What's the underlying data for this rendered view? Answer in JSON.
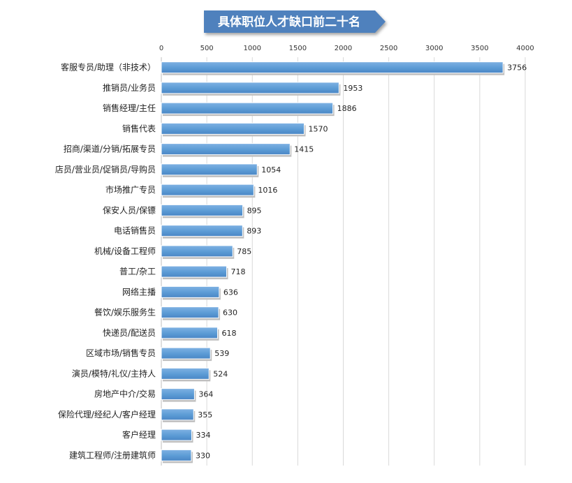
{
  "chart_data": {
    "type": "bar",
    "orientation": "horizontal",
    "title": "具体职位人才缺口前二十名",
    "xlabel": "",
    "ylabel": "",
    "xlim": [
      0,
      4000
    ],
    "x_ticks": [
      0,
      500,
      1000,
      1500,
      2000,
      2500,
      3000,
      3500,
      4000
    ],
    "x_axis_position": "top",
    "grid": true,
    "legend": "none",
    "data_labels": true,
    "bar_color": "#5b9bd5",
    "title_banner_color": "#4f81bd",
    "categories": [
      "客服专员/助理（非技术）",
      "推销员/业务员",
      "销售经理/主任",
      "销售代表",
      "招商/渠道/分销/拓展专员",
      "店员/营业员/促销员/导购员",
      "市场推广专员",
      "保安人员/保镖",
      "电话销售员",
      "机械/设备工程师",
      "普工/杂工",
      "网络主播",
      "餐饮/娱乐服务生",
      "快递员/配送员",
      "区域市场/销售专员",
      "演员/模特/礼仪/主持人",
      "房地产中介/交易",
      "保险代理/经纪人/客户经理",
      "客户经理",
      "建筑工程师/注册建筑师"
    ],
    "values": [
      3756,
      1953,
      1886,
      1570,
      1415,
      1054,
      1016,
      895,
      893,
      785,
      718,
      636,
      630,
      618,
      539,
      524,
      364,
      355,
      334,
      330
    ]
  }
}
